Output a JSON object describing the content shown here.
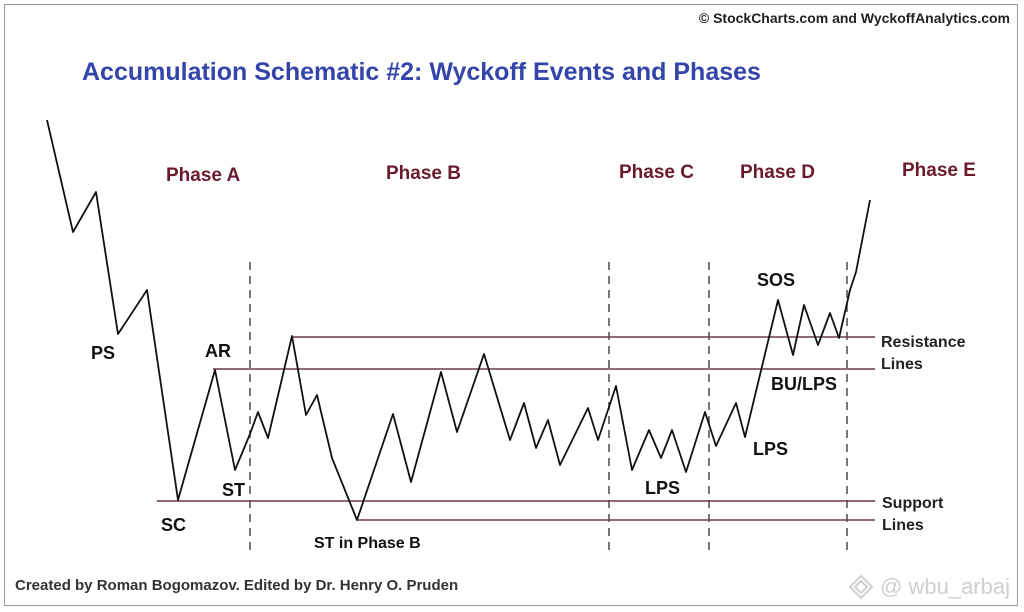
{
  "header": {
    "copyright": "© StockCharts.com and WyckoffAnalytics.com",
    "title": "Accumulation Schematic #2: Wyckoff Events and Phases"
  },
  "phases": [
    "Phase A",
    "Phase B",
    "Phase C",
    "Phase D",
    "Phase E"
  ],
  "events": {
    "ps": "PS",
    "sc": "SC",
    "ar": "AR",
    "st": "ST",
    "st_phase_b": "ST in Phase B",
    "lps_c": "LPS",
    "lps_d": "LPS",
    "sos": "SOS",
    "bu_lps": "BU/LPS"
  },
  "side_labels": {
    "resistance_1": "Resistance",
    "resistance_2": "Lines",
    "support_1": "Support",
    "support_2": "Lines"
  },
  "footer": {
    "credit": "Created by Roman Bogomazov. Edited by Dr. Henry O. Pruden",
    "watermark": "@ wbu_arbaj"
  },
  "colors": {
    "title": "#3344aa",
    "phase_label": "#6b1a2e",
    "price_line": "#111111",
    "level_line": "#6a3a4a",
    "divider": "#555555"
  }
}
